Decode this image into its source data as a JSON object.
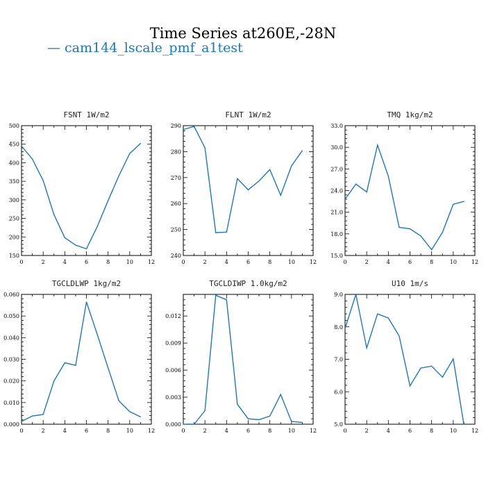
{
  "title": "Time Series at260E,-28N",
  "legend": {
    "label": "— cam144_lscale_pmf_a1test"
  },
  "colors": {
    "series": "#1f77b4",
    "legend_text": "#1f77b4"
  },
  "chart_data": [
    {
      "type": "line",
      "title": "FSNT   1W/m2",
      "series": [
        {
          "values": [
            445,
            410,
            352,
            260,
            198,
            178,
            168,
            228,
            298,
            365,
            425,
            452
          ]
        }
      ],
      "x": [
        0,
        1,
        2,
        3,
        4,
        5,
        6,
        7,
        8,
        9,
        10,
        11
      ],
      "xlim": [
        0,
        12
      ],
      "ylim": [
        150,
        500
      ],
      "xticks": [
        0,
        2,
        4,
        6,
        8,
        10,
        12
      ],
      "yticks": [
        150,
        200,
        250,
        300,
        350,
        400,
        450,
        500
      ],
      "ytick_labels": [
        "150",
        "200",
        "250",
        "300",
        "350",
        "400",
        "450",
        "500"
      ]
    },
    {
      "type": "line",
      "title": "FLNT   1W/m2",
      "series": [
        {
          "values": [
            288.5,
            289.7,
            281.5,
            248.8,
            249.0,
            269.6,
            265.3,
            268.7,
            273.1,
            263.2,
            274.5,
            280.4
          ]
        }
      ],
      "x": [
        0,
        1,
        2,
        3,
        4,
        5,
        6,
        7,
        8,
        9,
        10,
        11
      ],
      "xlim": [
        0,
        12
      ],
      "ylim": [
        240,
        290
      ],
      "xticks": [
        0,
        2,
        4,
        6,
        8,
        10,
        12
      ],
      "yticks": [
        240,
        250,
        260,
        270,
        280,
        290
      ],
      "ytick_labels": [
        "240",
        "250",
        "260",
        "270",
        "280",
        "290"
      ]
    },
    {
      "type": "line",
      "title": "TMQ   1kg/m2",
      "series": [
        {
          "values": [
            22.8,
            24.9,
            23.8,
            30.3,
            26.0,
            18.9,
            18.7,
            17.7,
            15.8,
            18.2,
            22.1,
            22.5
          ]
        }
      ],
      "x": [
        0,
        1,
        2,
        3,
        4,
        5,
        6,
        7,
        8,
        9,
        10,
        11
      ],
      "xlim": [
        0,
        12
      ],
      "ylim": [
        15,
        33
      ],
      "xticks": [
        0,
        2,
        4,
        6,
        8,
        10,
        12
      ],
      "yticks": [
        15,
        18,
        21,
        24,
        27,
        30,
        33
      ],
      "ytick_labels": [
        "15.0",
        "18.0",
        "21.0",
        "24.0",
        "27.0",
        "30.0",
        "33.0"
      ]
    },
    {
      "type": "line",
      "title": "TGCLDLWP   1kg/m2",
      "series": [
        {
          "values": [
            0.0013,
            0.0038,
            0.0045,
            0.02,
            0.0284,
            0.0272,
            0.0565,
            0.0415,
            0.026,
            0.0108,
            0.0058,
            0.0034
          ]
        }
      ],
      "x": [
        0,
        1,
        2,
        3,
        4,
        5,
        6,
        7,
        8,
        9,
        10,
        11
      ],
      "xlim": [
        0,
        12
      ],
      "ylim": [
        0,
        0.06
      ],
      "xticks": [
        0,
        2,
        4,
        6,
        8,
        10,
        12
      ],
      "yticks": [
        0,
        0.01,
        0.02,
        0.03,
        0.04,
        0.05,
        0.06
      ],
      "ytick_labels": [
        "0.000",
        "0.010",
        "0.020",
        "0.030",
        "0.040",
        "0.050",
        "0.060"
      ]
    },
    {
      "type": "line",
      "title": "TGCLDIWP   1.0kg/m2",
      "series": [
        {
          "values": [
            0.0,
            0.0,
            0.0015,
            0.0143,
            0.0138,
            0.0022,
            0.0006,
            0.0005,
            0.0009,
            0.0033,
            0.0003,
            0.0002
          ]
        }
      ],
      "x": [
        0,
        1,
        2,
        3,
        4,
        5,
        6,
        7,
        8,
        9,
        10,
        11
      ],
      "xlim": [
        0,
        12
      ],
      "ylim": [
        0,
        0.0144
      ],
      "xticks": [
        0,
        2,
        4,
        6,
        8,
        10,
        12
      ],
      "yticks": [
        0,
        0.003,
        0.006,
        0.009,
        0.012
      ],
      "ytick_labels": [
        "0.000",
        "0.003",
        "0.006",
        "0.009",
        "0.012"
      ]
    },
    {
      "type": "line",
      "title": "U10   1m/s",
      "series": [
        {
          "values": [
            7.95,
            9.0,
            7.35,
            8.4,
            8.27,
            7.72,
            6.18,
            6.73,
            6.79,
            6.45,
            7.01,
            4.95
          ]
        }
      ],
      "x": [
        0,
        1,
        2,
        3,
        4,
        5,
        6,
        7,
        8,
        9,
        10,
        11
      ],
      "xlim": [
        0,
        12
      ],
      "ylim": [
        5,
        9
      ],
      "xticks": [
        0,
        2,
        4,
        6,
        8,
        10,
        12
      ],
      "yticks": [
        5,
        6,
        7,
        8,
        9
      ],
      "ytick_labels": [
        "5.0",
        "6.0",
        "7.0",
        "8.0",
        "9.0"
      ]
    }
  ]
}
